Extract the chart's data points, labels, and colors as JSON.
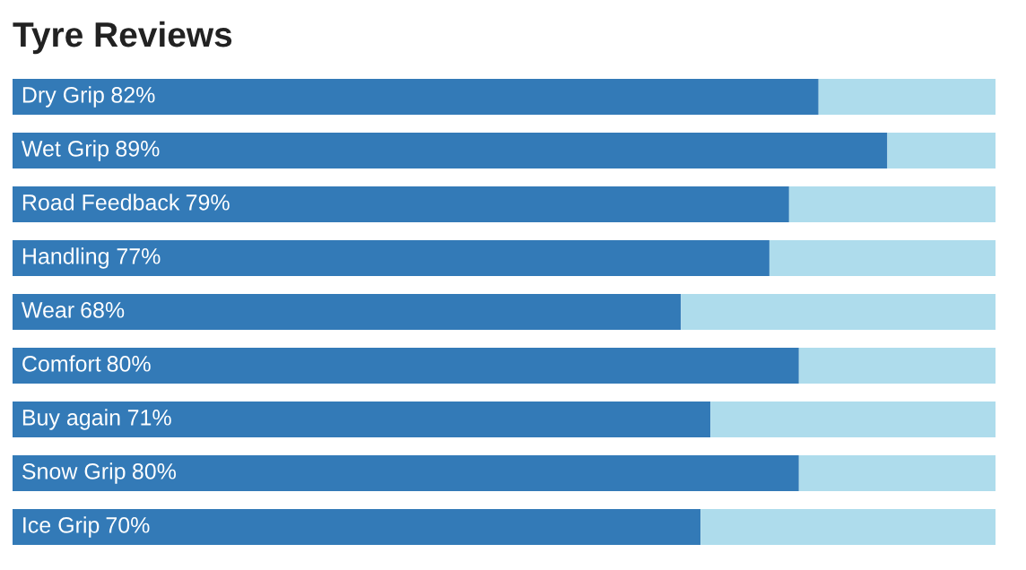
{
  "chart_data": {
    "type": "bar",
    "title": "Tyre Reviews",
    "orientation": "horizontal",
    "stacked": true,
    "categories": [
      "Dry Grip",
      "Wet Grip",
      "Road Feedback",
      "Handling",
      "Wear",
      "Comfort",
      "Buy again",
      "Snow Grip",
      "Ice Grip"
    ],
    "series": [
      {
        "color": "#337ab7",
        "values": [
          82,
          89,
          79,
          77,
          68,
          80,
          71,
          80,
          70
        ],
        "value_labels": [
          "82%",
          "89%",
          "79%",
          "77%",
          "68%",
          "80%",
          "71%",
          "80%",
          "70%"
        ]
      },
      {
        "color": "#aedcec",
        "values": [
          18,
          11,
          21,
          23,
          32,
          20,
          29,
          20,
          30
        ]
      }
    ]
  }
}
